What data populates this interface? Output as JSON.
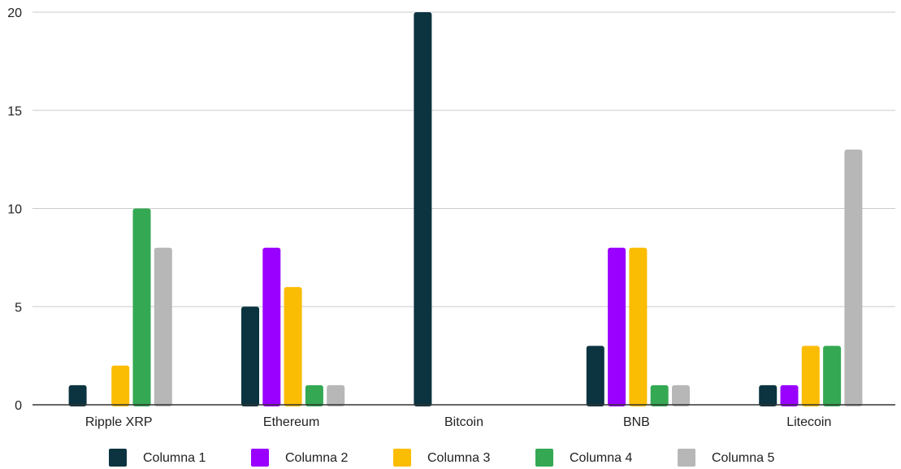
{
  "chart_data": {
    "type": "bar",
    "categories": [
      "Ripple XRP",
      "Ethereum",
      "Bitcoin",
      "BNB",
      "Litecoin"
    ],
    "series": [
      {
        "name": "Columna 1",
        "color": "#0b3440",
        "values": [
          1,
          5,
          20,
          3,
          1
        ]
      },
      {
        "name": "Columna 2",
        "color": "#9900ff",
        "values": [
          0,
          8,
          0,
          8,
          1
        ]
      },
      {
        "name": "Columna 3",
        "color": "#fbbc04",
        "values": [
          2,
          6,
          0,
          8,
          3
        ]
      },
      {
        "name": "Columna 4",
        "color": "#34a853",
        "values": [
          10,
          1,
          0,
          1,
          3
        ]
      },
      {
        "name": "Columna 5",
        "color": "#b7b7b7",
        "values": [
          8,
          1,
          0,
          1,
          13
        ]
      }
    ],
    "ylim": [
      0,
      20
    ],
    "yticks": [
      0,
      5,
      10,
      15,
      20
    ],
    "grid": true,
    "legend_position": "bottom"
  }
}
